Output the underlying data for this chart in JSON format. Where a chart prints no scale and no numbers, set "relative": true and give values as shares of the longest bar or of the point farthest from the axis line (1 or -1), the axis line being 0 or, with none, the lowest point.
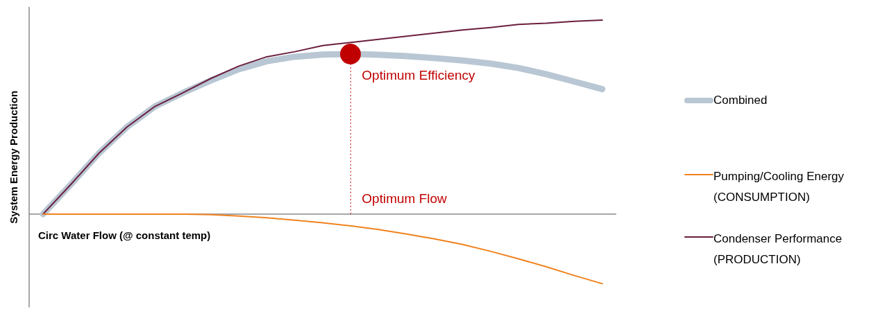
{
  "chart_data": {
    "type": "line",
    "relative": true,
    "xlabel": "Circ Water Flow (@ constant temp)",
    "ylabel": "System Energy Production",
    "categories": [
      null,
      null,
      null,
      null,
      null,
      null,
      null,
      null,
      null,
      null,
      null,
      null,
      null,
      null,
      null,
      null,
      null,
      null,
      null,
      null,
      null
    ],
    "legend": "right",
    "line_style": "solid",
    "marker": "none",
    "series": [
      {
        "name": "Combined",
        "color": "#b8c7d3",
        "values": [
          0,
          0.154,
          0.314,
          0.449,
          0.555,
          0.625,
          0.689,
          0.747,
          0.788,
          0.811,
          0.822,
          0.825,
          0.821,
          0.814,
          0.804,
          0.792,
          0.776,
          0.753,
          0.721,
          0.683,
          0.644
        ]
      },
      {
        "name": "Pumping/Cooling Energy (CONSUMPTION)",
        "color": "#f0821e",
        "values": [
          0,
          0,
          0,
          0,
          0,
          0,
          -0.003,
          -0.01,
          -0.019,
          -0.032,
          -0.045,
          -0.061,
          -0.08,
          -0.103,
          -0.128,
          -0.157,
          -0.192,
          -0.231,
          -0.272,
          -0.317,
          -0.359
        ]
      },
      {
        "name": "Condenser Performance (PRODUCTION)",
        "color": "#6b1e3e",
        "values": [
          0,
          0.154,
          0.314,
          0.449,
          0.555,
          0.625,
          0.699,
          0.763,
          0.811,
          0.837,
          0.869,
          0.885,
          0.901,
          0.917,
          0.933,
          0.949,
          0.962,
          0.978,
          0.984,
          0.994,
          1
        ]
      }
    ],
    "annotations": [
      "Optimum Efficiency",
      "Optimum Flow"
    ]
  }
}
